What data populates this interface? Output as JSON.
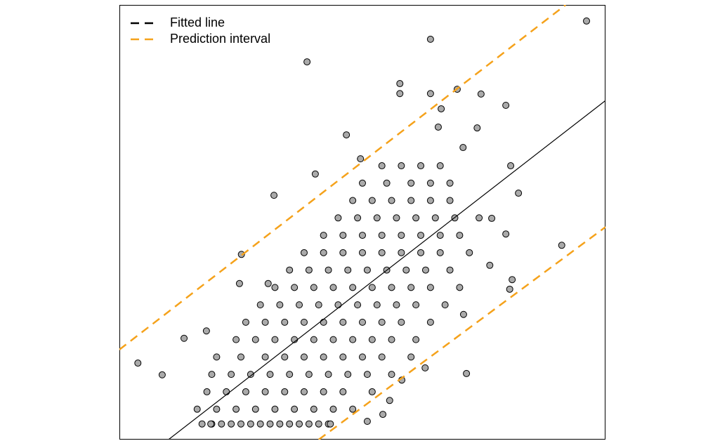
{
  "chart_data": {
    "type": "scatter",
    "xlim": [
      0,
      100
    ],
    "ylim": [
      0,
      100
    ],
    "legend": "upper left",
    "series": [
      {
        "type": "scatter",
        "color": "#aaaaaa",
        "x": [
          17,
          19,
          21,
          23,
          25,
          27,
          29,
          31,
          33,
          35,
          37,
          39,
          41,
          43,
          16,
          20,
          24,
          28,
          32,
          36,
          40,
          44,
          48,
          18,
          22,
          26,
          30,
          34,
          38,
          42,
          46,
          52,
          19,
          23,
          27,
          31,
          35,
          39,
          43,
          47,
          51,
          56,
          20,
          25,
          30,
          34,
          38,
          42,
          46,
          50,
          54,
          60,
          24,
          28,
          32,
          36,
          40,
          44,
          48,
          52,
          56,
          61,
          26,
          30,
          34,
          38,
          42,
          46,
          50,
          54,
          58,
          64,
          29,
          33,
          37,
          41,
          45,
          49,
          53,
          57,
          61,
          67,
          32,
          36,
          40,
          44,
          48,
          52,
          56,
          60,
          64,
          70,
          35,
          39,
          43,
          47,
          51,
          55,
          59,
          63,
          68,
          38,
          42,
          46,
          50,
          54,
          58,
          62,
          66,
          72,
          42,
          46,
          50,
          54,
          58,
          62,
          66,
          70,
          45,
          49,
          53,
          57,
          61,
          65,
          69,
          74,
          48,
          52,
          56,
          60,
          64,
          68,
          50,
          55,
          60,
          64,
          68,
          54,
          58,
          62,
          66,
          96.1,
          64.0,
          38.6,
          57.7,
          57.7,
          64.0,
          69.5,
          74.4,
          79.5,
          66.2,
          65.6,
          73.6,
          46.7,
          70.7,
          49.6,
          40.3,
          31.8,
          80.5,
          82.1,
          91.0,
          25.1,
          24.7,
          30.6,
          3.8,
          8.8,
          13.3,
          17.9,
          71.4,
          80.8,
          80.3,
          76.2,
          79.5,
          76.6,
          70.8,
          62.9,
          58.1,
          55.6,
          51.0,
          54.2,
          43.4,
          18.8
        ],
        "values": [
          3.6,
          3.6,
          3.6,
          3.6,
          3.6,
          3.6,
          3.6,
          3.6,
          3.6,
          3.6,
          3.6,
          3.6,
          3.6,
          3.6,
          7,
          7,
          7,
          7,
          7,
          7,
          7,
          7,
          7,
          11,
          11,
          11,
          11,
          11,
          11,
          11,
          11,
          11,
          15,
          15,
          15,
          15,
          15,
          15,
          15,
          15,
          15,
          15,
          19,
          19,
          19,
          19,
          19,
          19,
          19,
          19,
          19,
          19,
          23,
          23,
          23,
          23,
          23,
          23,
          23,
          23,
          23,
          23,
          27,
          27,
          27,
          27,
          27,
          27,
          27,
          27,
          27,
          27,
          31,
          31,
          31,
          31,
          31,
          31,
          31,
          31,
          31,
          31,
          35,
          35,
          35,
          35,
          35,
          35,
          35,
          35,
          35,
          35,
          39,
          39,
          39,
          39,
          39,
          39,
          39,
          39,
          39,
          43,
          43,
          43,
          43,
          43,
          43,
          43,
          43,
          43,
          47,
          47,
          47,
          47,
          47,
          47,
          47,
          47,
          51,
          51,
          51,
          51,
          51,
          51,
          51,
          51,
          55,
          55,
          55,
          55,
          55,
          55,
          59,
          59,
          59,
          59,
          59,
          63,
          63,
          63,
          63,
          96.3,
          92.1,
          86.9,
          81.9,
          79.6,
          79.6,
          80.6,
          79.5,
          76.9,
          76.1,
          71.9,
          71.7,
          70.1,
          67.2,
          64.6,
          61.1,
          56.2,
          63.0,
          56.7,
          44.7,
          42.6,
          35.9,
          35.9,
          17.6,
          14.9,
          23.3,
          25.0,
          15.2,
          36.8,
          34.6,
          40.1,
          47.3,
          50.9,
          28.8,
          16.5,
          13.7,
          9.0,
          4.2,
          5.8,
          3.6,
          3.6
        ]
      },
      {
        "type": "line",
        "name": "Fitted line",
        "color": "#000000",
        "pieces": [
          {
            "x": [
              10.1,
              100
            ],
            "values": [
              0,
              78.0
            ]
          }
        ]
      },
      {
        "type": "line",
        "name": "Prediction interval",
        "color": "#f5a21b",
        "dashed": true,
        "pieces": [
          {
            "x": [
              0,
              91.8
            ],
            "values": [
              20.7,
              100
            ]
          },
          {
            "x": [
              41.0,
              100
            ],
            "values": [
              0,
              48.9
            ]
          }
        ]
      }
    ]
  }
}
